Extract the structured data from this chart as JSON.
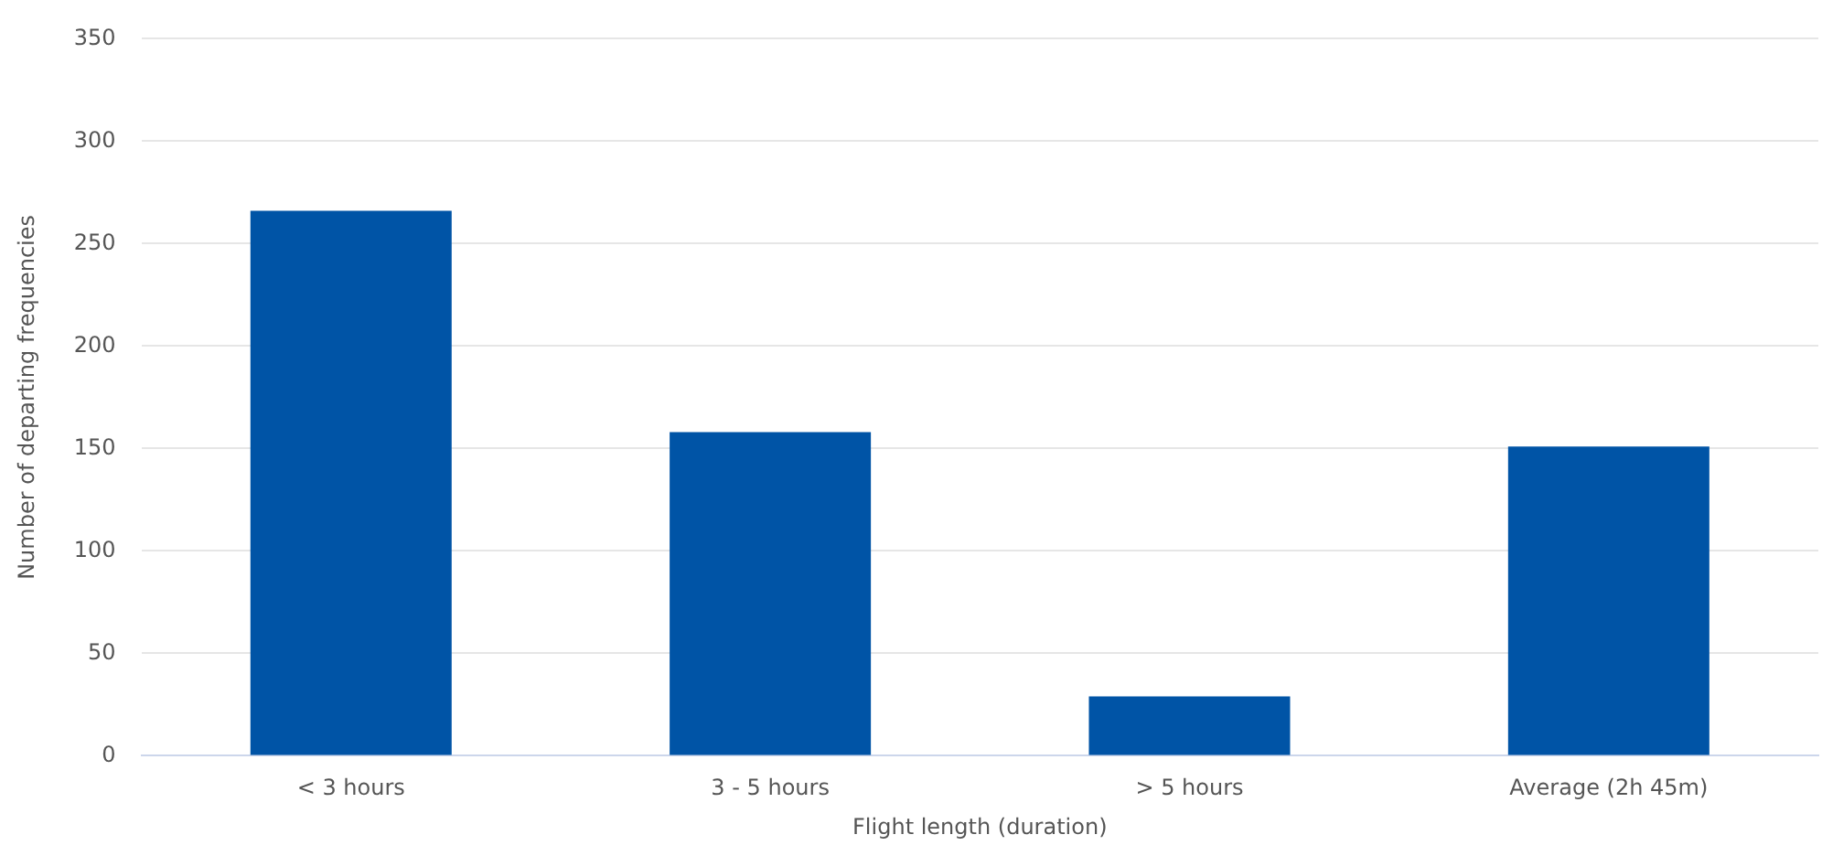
{
  "chart_data": {
    "type": "bar",
    "xlabel": "Flight length (duration)",
    "ylabel": "Number of departing frequencies",
    "categories": [
      "< 3 hours",
      "3 - 5 hours",
      "> 5 hours",
      "Average (2h 45m)"
    ],
    "values": [
      266,
      158,
      29,
      151
    ],
    "color": "#0054a6",
    "ylim": [
      0,
      350
    ],
    "yticks": [
      0,
      50,
      100,
      150,
      200,
      250,
      300,
      350
    ],
    "grid": "y"
  }
}
